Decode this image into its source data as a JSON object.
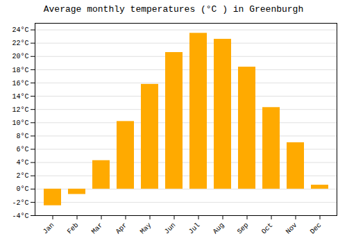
{
  "chart_data": {
    "type": "bar",
    "title": "Average monthly temperatures (°C ) in Greenburgh",
    "categories": [
      "Jan",
      "Feb",
      "Mar",
      "Apr",
      "May",
      "Jun",
      "Jul",
      "Aug",
      "Sep",
      "Oct",
      "Nov",
      "Dec"
    ],
    "values": [
      -2.5,
      -0.8,
      4.3,
      10.2,
      15.8,
      20.6,
      23.5,
      22.6,
      18.4,
      12.3,
      7.0,
      0.6
    ],
    "color": "#FFAA00",
    "ylim": [
      -4,
      25
    ],
    "yticks": [
      {
        "value": -4,
        "label": "-4°C"
      },
      {
        "value": -2,
        "label": "-2°C"
      },
      {
        "value": 0,
        "label": "0°C"
      },
      {
        "value": 2,
        "label": "2°C"
      },
      {
        "value": 4,
        "label": "4°C"
      },
      {
        "value": 6,
        "label": "6°C"
      },
      {
        "value": 8,
        "label": "8°C"
      },
      {
        "value": 10,
        "label": "10°C"
      },
      {
        "value": 12,
        "label": "12°C"
      },
      {
        "value": 14,
        "label": "14°C"
      },
      {
        "value": 16,
        "label": "16°C"
      },
      {
        "value": 18,
        "label": "18°C"
      },
      {
        "value": 20,
        "label": "20°C"
      },
      {
        "value": 22,
        "label": "22°C"
      },
      {
        "value": 24,
        "label": "24°C"
      }
    ],
    "grid": true
  }
}
